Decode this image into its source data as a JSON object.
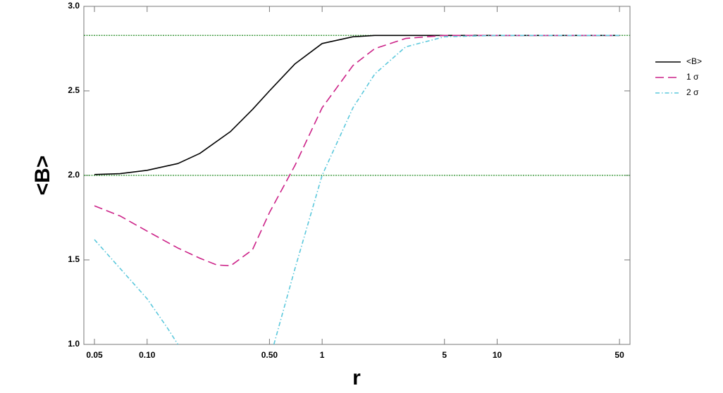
{
  "chart_data": {
    "type": "line",
    "x_label": "r",
    "y_label": "<B>",
    "xscale": "log",
    "xlim": [
      0.0435,
      57.4
    ],
    "ylim": [
      1.0,
      3.0
    ],
    "xticks": [
      0.05,
      {
        "value": 0.1,
        "label": "0.10"
      },
      {
        "value": 0.5,
        "label": "0.50"
      },
      1,
      5,
      10,
      50
    ],
    "yticks": [
      {
        "value": 1.0,
        "label": "1.0"
      },
      1.5,
      {
        "value": 2.0,
        "label": "2.0"
      },
      2.5,
      {
        "value": 3.0,
        "label": "3.0"
      }
    ],
    "hlines": [
      2.828,
      2.0
    ],
    "hline_color": "#228b22",
    "legend": "outside-right",
    "series": [
      {
        "name": "<B>",
        "color": "#000000",
        "dash": "solid",
        "x": [
          0.05,
          0.07,
          0.1,
          0.15,
          0.2,
          0.3,
          0.4,
          0.5,
          0.7,
          1,
          1.5,
          2,
          3,
          5,
          10,
          20,
          50
        ],
        "values": [
          2.005,
          2.01,
          2.03,
          2.07,
          2.13,
          2.26,
          2.39,
          2.5,
          2.66,
          2.78,
          2.82,
          2.828,
          2.828,
          2.828,
          2.828,
          2.828,
          2.828
        ]
      },
      {
        "name": "1 σ",
        "color": "#cc2288",
        "dash": "dashed",
        "x": [
          0.05,
          0.07,
          0.1,
          0.15,
          0.2,
          0.25,
          0.3,
          0.4,
          0.5,
          0.7,
          1,
          1.5,
          2,
          3,
          5,
          10,
          50
        ],
        "values": [
          1.82,
          1.76,
          1.67,
          1.57,
          1.51,
          1.47,
          1.465,
          1.56,
          1.78,
          2.06,
          2.4,
          2.65,
          2.75,
          2.81,
          2.828,
          2.828,
          2.828
        ]
      },
      {
        "name": "2 σ",
        "color": "#5bc8dc",
        "dash": "dashdot",
        "x": [
          0.05,
          0.07,
          0.1,
          0.13,
          0.15,
          0.3,
          0.53,
          0.7,
          1,
          1.5,
          2,
          3,
          5,
          10,
          50
        ],
        "values": [
          1.62,
          1.45,
          1.27,
          1.1,
          1.0,
          null,
          1.0,
          1.45,
          2.0,
          2.4,
          2.6,
          2.76,
          2.82,
          2.828,
          2.828
        ]
      }
    ]
  }
}
